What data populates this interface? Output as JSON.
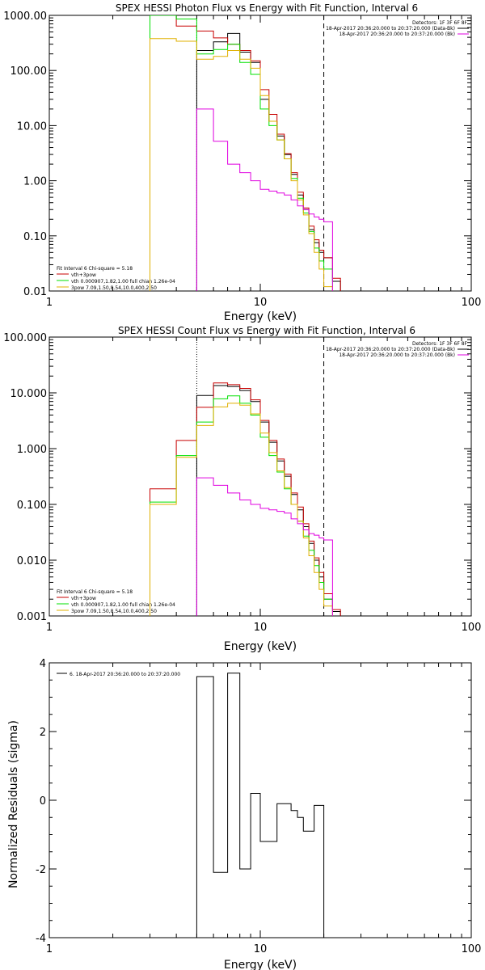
{
  "colors": {
    "black": "#000000",
    "red": "#c80000",
    "green": "#00e000",
    "yellow": "#e0b000",
    "magenta": "#e000e0"
  },
  "panels": {
    "photon": {
      "title": "SPEX HESSI Photon Flux vs Energy with Fit Function, Interval 6",
      "xlabel": "Energy (keV)",
      "ylabel": "",
      "header": {
        "detectors": "Detectors: 1F 3F 6F 8F",
        "line1": "18-Apr-2017 20:36:20.000 to 20:37:20.000 (Data-Bk)",
        "line2": "18-Apr-2017 20:36:20.000 to 20:37:20.000 (Bk)"
      },
      "legend": {
        "line1": "Fit Interval 6   Chi-square = 5.18",
        "line2": "vth+3pow",
        "line3": "vth 0.000907,1.82,1.00  full chian 1.26e-04",
        "line4": "3pow 7.09,1.50,8.54,10.0,400,2.50"
      },
      "xticklabels": [
        "1",
        "10",
        "100"
      ],
      "yticklabels": [
        "0.01",
        "0.10",
        "1.00",
        "10.00",
        "100.00",
        "1000.00"
      ]
    },
    "count": {
      "title": "SPEX HESSI Count Flux vs Energy with Fit Function, Interval 6",
      "xlabel": "Energy (keV)",
      "ylabel": "",
      "header": {
        "detectors": "Detectors: 1F 3F 6F 8F",
        "line1": "18-Apr-2017 20:36:20.000 to 20:37:20.000 (Data-Bk)",
        "line2": "18-Apr-2017 20:36:20.000 to 20:37:20.000 (Bk)"
      },
      "legend": {
        "line1": "Fit Interval 6   Chi-square = 5.18",
        "line2": "vth+3pow",
        "line3": "vth 0.000907,1.82,1.00  full chian 1.26e-04",
        "line4": "3pow 7.09,1.50,8.54,10.0,400,2.50"
      },
      "xticklabels": [
        "1",
        "10",
        "100"
      ],
      "yticklabels": [
        "0.001",
        "0.010",
        "0.100",
        "1.000",
        "10.000",
        "100.000"
      ]
    },
    "resid": {
      "title": "",
      "xlabel": "Energy (keV)",
      "ylabel": "Normalized Residuals (sigma)",
      "legend": "6. 18-Apr-2017 20:36:20.000 to 20:37:20.000",
      "xticklabels": [
        "1",
        "10",
        "100"
      ],
      "yticklabels": [
        "-4",
        "-2",
        "0",
        "2",
        "4"
      ]
    }
  },
  "chart_data": [
    {
      "type": "line",
      "title": "SPEX HESSI Photon Flux vs Energy with Fit Function, Interval 6",
      "xlabel": "Energy (keV)",
      "xscale": "log",
      "yscale": "log",
      "xlim": [
        1,
        100
      ],
      "ylim": [
        0.01,
        1000
      ],
      "edges": [
        3,
        4,
        5,
        6,
        7,
        8,
        9,
        10,
        11,
        12,
        13,
        14,
        15,
        16,
        17,
        18,
        19,
        20,
        22,
        24
      ],
      "vlines": [
        5,
        20
      ],
      "series": [
        {
          "name": "Data-Bk",
          "color": "black",
          "values": [
            null,
            null,
            230,
            330,
            470,
            215,
            140,
            30,
            12,
            6.5,
            3.0,
            1.3,
            0.55,
            0.3,
            0.13,
            0.075,
            0.05,
            0.04,
            0.015
          ]
        },
        {
          "name": "vth+3pow",
          "color": "red",
          "values": [
            1000,
            640,
            520,
            390,
            300,
            230,
            150,
            45,
            16,
            7.0,
            3.1,
            1.4,
            0.62,
            0.32,
            0.15,
            0.085,
            0.055,
            0.04,
            0.017
          ]
        },
        {
          "name": "vth",
          "color": "green",
          "values": [
            1000,
            860,
            200,
            240,
            300,
            140,
            85,
            20,
            10,
            5.5,
            2.5,
            1.1,
            0.48,
            0.26,
            0.12,
            0.06,
            0.035,
            0.025,
            null
          ]
        },
        {
          "name": "3pow",
          "color": "yellow",
          "values": [
            380,
            340,
            160,
            180,
            230,
            160,
            110,
            35,
            12,
            5.5,
            2.5,
            1.0,
            0.45,
            0.24,
            0.11,
            0.05,
            0.025,
            0.012,
            null
          ]
        },
        {
          "name": "Bk",
          "color": "magenta",
          "values": [
            null,
            null,
            20,
            5.2,
            2.0,
            1.4,
            1.0,
            0.7,
            0.65,
            0.6,
            0.55,
            0.45,
            0.35,
            0.3,
            0.25,
            0.22,
            0.2,
            0.18,
            null
          ]
        }
      ]
    },
    {
      "type": "line",
      "title": "SPEX HESSI Count Flux vs Energy with Fit Function, Interval 6",
      "xlabel": "Energy (keV)",
      "xscale": "log",
      "yscale": "log",
      "xlim": [
        1,
        100
      ],
      "ylim": [
        0.001,
        100
      ],
      "edges": [
        3,
        4,
        5,
        6,
        7,
        8,
        9,
        10,
        11,
        12,
        13,
        14,
        15,
        16,
        17,
        18,
        19,
        20,
        22,
        24
      ],
      "vlines": [
        5,
        20
      ],
      "series": [
        {
          "name": "Data-Bk",
          "color": "black",
          "values": [
            null,
            null,
            9.0,
            13.5,
            13.0,
            11.0,
            7.0,
            3.0,
            1.3,
            0.6,
            0.32,
            0.15,
            0.08,
            0.04,
            0.02,
            0.01,
            0.005,
            0.002,
            0.0012
          ]
        },
        {
          "name": "vth+3pow",
          "color": "red",
          "values": [
            0.19,
            1.4,
            5.5,
            15.0,
            14.0,
            12.0,
            7.5,
            3.2,
            1.4,
            0.65,
            0.35,
            0.16,
            0.09,
            0.045,
            0.022,
            0.011,
            0.006,
            0.0025,
            0.0013
          ]
        },
        {
          "name": "vth",
          "color": "green",
          "values": [
            0.11,
            0.75,
            3.0,
            7.8,
            8.8,
            6.5,
            4.0,
            1.6,
            0.75,
            0.38,
            0.19,
            0.1,
            0.05,
            0.027,
            0.015,
            0.008,
            0.004,
            0.002,
            null
          ]
        },
        {
          "name": "3pow",
          "color": "yellow",
          "values": [
            0.1,
            0.7,
            2.6,
            5.6,
            6.5,
            6.0,
            4.2,
            1.9,
            0.85,
            0.4,
            0.2,
            0.1,
            0.05,
            0.025,
            0.012,
            0.006,
            0.003,
            0.0015,
            null
          ]
        },
        {
          "name": "Bk",
          "color": "magenta",
          "values": [
            null,
            null,
            0.3,
            0.22,
            0.16,
            0.12,
            0.1,
            0.085,
            0.08,
            0.075,
            0.07,
            0.055,
            0.045,
            0.035,
            0.03,
            0.028,
            0.025,
            0.023,
            null
          ]
        }
      ]
    },
    {
      "type": "line",
      "ylabel": "Normalized Residuals (sigma)",
      "xlabel": "Energy (keV)",
      "xscale": "log",
      "xlim": [
        1,
        100
      ],
      "ylim": [
        -4,
        4
      ],
      "edges": [
        5,
        6,
        7,
        8,
        9,
        10,
        12,
        14,
        15,
        16,
        18,
        20
      ],
      "series": [
        {
          "name": "6. 18-Apr-2017 20:36:20.000 to 20:37:20.000",
          "color": "black",
          "values": [
            3.6,
            -2.1,
            3.7,
            -2.0,
            0.2,
            -1.2,
            -0.1,
            -0.3,
            -0.5,
            -0.9,
            -0.15
          ]
        }
      ]
    }
  ]
}
